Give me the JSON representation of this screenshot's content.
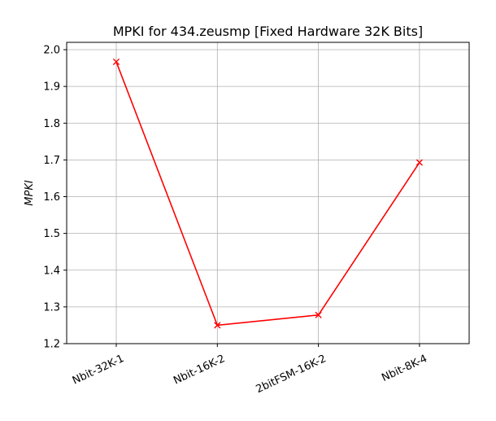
{
  "chart_data": {
    "type": "line",
    "title": "MPKI for 434.zeusmp [Fixed Hardware 32K Bits]",
    "xlabel": "",
    "ylabel": "MPKI",
    "categories": [
      "Nbit-32K-1",
      "Nbit-16K-2",
      "2bitFSM-16K-2",
      "Nbit-8K-4"
    ],
    "series": [
      {
        "values": [
          1.967,
          1.25,
          1.278,
          1.693
        ]
      }
    ],
    "ylim": [
      1.2,
      2.02
    ],
    "yticks": [
      "1.2",
      "1.3",
      "1.4",
      "1.5",
      "1.6",
      "1.7",
      "1.8",
      "1.9",
      "2.0"
    ],
    "grid": true,
    "line_color": "#ff0000",
    "marker": "x"
  }
}
